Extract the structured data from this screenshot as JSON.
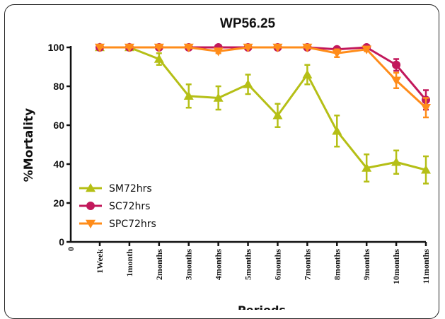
{
  "chart_data": {
    "type": "line",
    "title": "WP56.25",
    "xlabel": "Periods",
    "ylabel": "%Mortality",
    "categories": [
      "1Week",
      "1month",
      "2months",
      "3months",
      "4months",
      "5months",
      "6months",
      "7months",
      "8months",
      "9months",
      "10months",
      "11months"
    ],
    "x_origin_label": "0",
    "ylim": [
      0,
      100
    ],
    "yticks": [
      0,
      20,
      40,
      60,
      80,
      100
    ],
    "legend_position": "bottom-left",
    "grid": false,
    "series": [
      {
        "name": "SM72hrs",
        "color": "#b5bf16",
        "marker": "triangle-up",
        "values": [
          100,
          100,
          94,
          75,
          74,
          81,
          65,
          86,
          57,
          38,
          41,
          37
        ],
        "errors": [
          0,
          0,
          3,
          6,
          6,
          5,
          6,
          5,
          8,
          7,
          6,
          7
        ]
      },
      {
        "name": "SC72hrs",
        "color": "#c2185b",
        "marker": "circle",
        "values": [
          100,
          100,
          100,
          100,
          100,
          100,
          100,
          100,
          99,
          100,
          91,
          73
        ],
        "errors": [
          0,
          0,
          0,
          0,
          0,
          0,
          0,
          0,
          0,
          0,
          3,
          5
        ]
      },
      {
        "name": "SPC72hrs",
        "color": "#ff8c1a",
        "marker": "triangle-down",
        "values": [
          100,
          100,
          100,
          100,
          98,
          100,
          100,
          100,
          97,
          99,
          83,
          69
        ],
        "errors": [
          0,
          0,
          0,
          0,
          1,
          0,
          0,
          0,
          2,
          1,
          4,
          5
        ]
      }
    ]
  }
}
